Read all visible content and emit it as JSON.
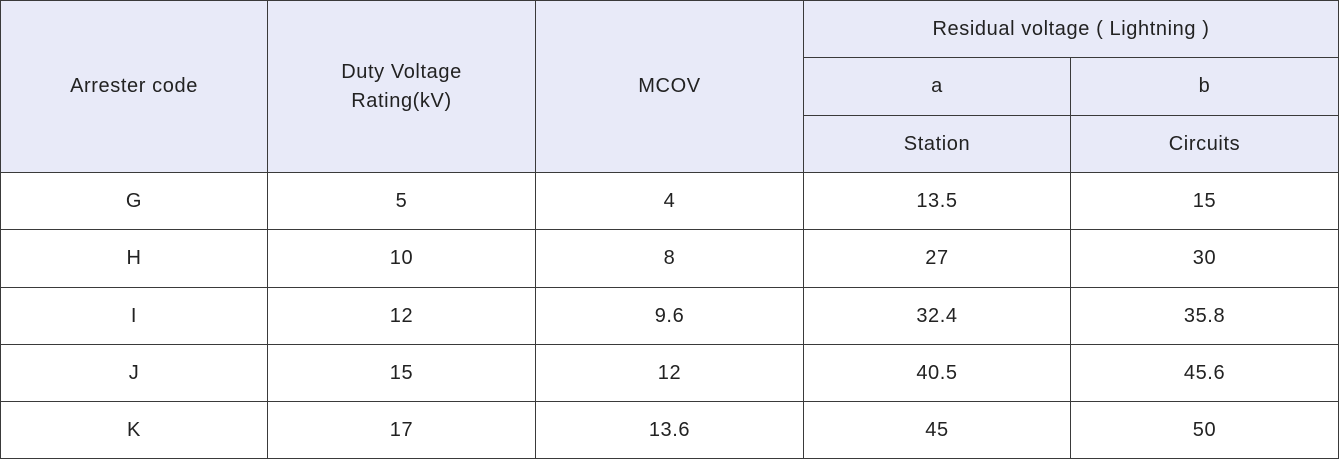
{
  "table": {
    "header": {
      "code": "Arrester code",
      "duty": "Duty Voltage Rating(kV)",
      "mcov": "MCOV",
      "residual": "Residual voltage ( Lightning )",
      "a": "a",
      "b": "b",
      "station": "Station",
      "circuits": "Circuits"
    },
    "rows": [
      [
        "G",
        "5",
        "4",
        "13.5",
        "15"
      ],
      [
        "H",
        "10",
        "8",
        "27",
        "30"
      ],
      [
        "I",
        "12",
        "9.6",
        "32.4",
        "35.8"
      ],
      [
        "J",
        "15",
        "12",
        "40.5",
        "45.6"
      ],
      [
        "K",
        "17",
        "13.6",
        "45",
        "50"
      ]
    ]
  }
}
